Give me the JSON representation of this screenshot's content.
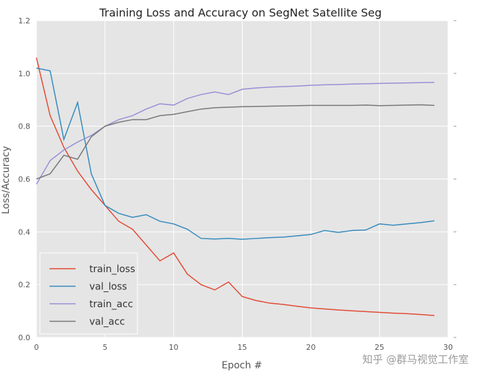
{
  "chart_data": {
    "type": "line",
    "title": "Training Loss and Accuracy on SegNet Satellite Seg",
    "xlabel": "Epoch #",
    "ylabel": "Loss/Accuracy",
    "xlim": [
      0,
      30
    ],
    "ylim": [
      0,
      1.2
    ],
    "xticks": [
      0,
      5,
      10,
      15,
      20,
      25,
      30
    ],
    "yticks": [
      "0.0",
      "0.2",
      "0.4",
      "0.6",
      "0.8",
      "1.0",
      "1.2"
    ],
    "grid": true,
    "legend_placement": "lower-left",
    "x": [
      0,
      1,
      2,
      3,
      4,
      5,
      6,
      7,
      8,
      9,
      10,
      11,
      12,
      13,
      14,
      15,
      16,
      17,
      18,
      19,
      20,
      21,
      22,
      23,
      24,
      25,
      26,
      27,
      28,
      29
    ],
    "series": [
      {
        "name": "train_loss",
        "color": "#E24A33",
        "values": [
          1.06,
          0.84,
          0.72,
          0.63,
          0.56,
          0.5,
          0.44,
          0.41,
          0.35,
          0.29,
          0.32,
          0.24,
          0.2,
          0.18,
          0.21,
          0.155,
          0.14,
          0.13,
          0.125,
          0.118,
          0.112,
          0.108,
          0.104,
          0.101,
          0.098,
          0.095,
          0.092,
          0.09,
          0.087,
          0.083
        ]
      },
      {
        "name": "val_loss",
        "color": "#348ABD",
        "values": [
          1.02,
          1.01,
          0.75,
          0.89,
          0.62,
          0.5,
          0.47,
          0.455,
          0.465,
          0.44,
          0.43,
          0.41,
          0.375,
          0.373,
          0.375,
          0.372,
          0.375,
          0.378,
          0.38,
          0.385,
          0.39,
          0.405,
          0.398,
          0.405,
          0.407,
          0.43,
          0.425,
          0.43,
          0.435,
          0.442
        ]
      },
      {
        "name": "train_acc",
        "color": "#988ED5",
        "values": [
          0.58,
          0.67,
          0.71,
          0.74,
          0.765,
          0.8,
          0.825,
          0.84,
          0.865,
          0.885,
          0.88,
          0.905,
          0.92,
          0.93,
          0.92,
          0.94,
          0.945,
          0.948,
          0.95,
          0.952,
          0.955,
          0.957,
          0.958,
          0.96,
          0.961,
          0.962,
          0.963,
          0.964,
          0.965,
          0.966
        ]
      },
      {
        "name": "val_acc",
        "color": "#777777",
        "values": [
          0.6,
          0.62,
          0.69,
          0.675,
          0.76,
          0.8,
          0.815,
          0.825,
          0.825,
          0.84,
          0.845,
          0.855,
          0.865,
          0.87,
          0.872,
          0.874,
          0.875,
          0.876,
          0.877,
          0.878,
          0.879,
          0.879,
          0.879,
          0.879,
          0.88,
          0.878,
          0.879,
          0.88,
          0.881,
          0.879
        ]
      }
    ]
  },
  "watermark": "知乎 @群马视觉工作室"
}
